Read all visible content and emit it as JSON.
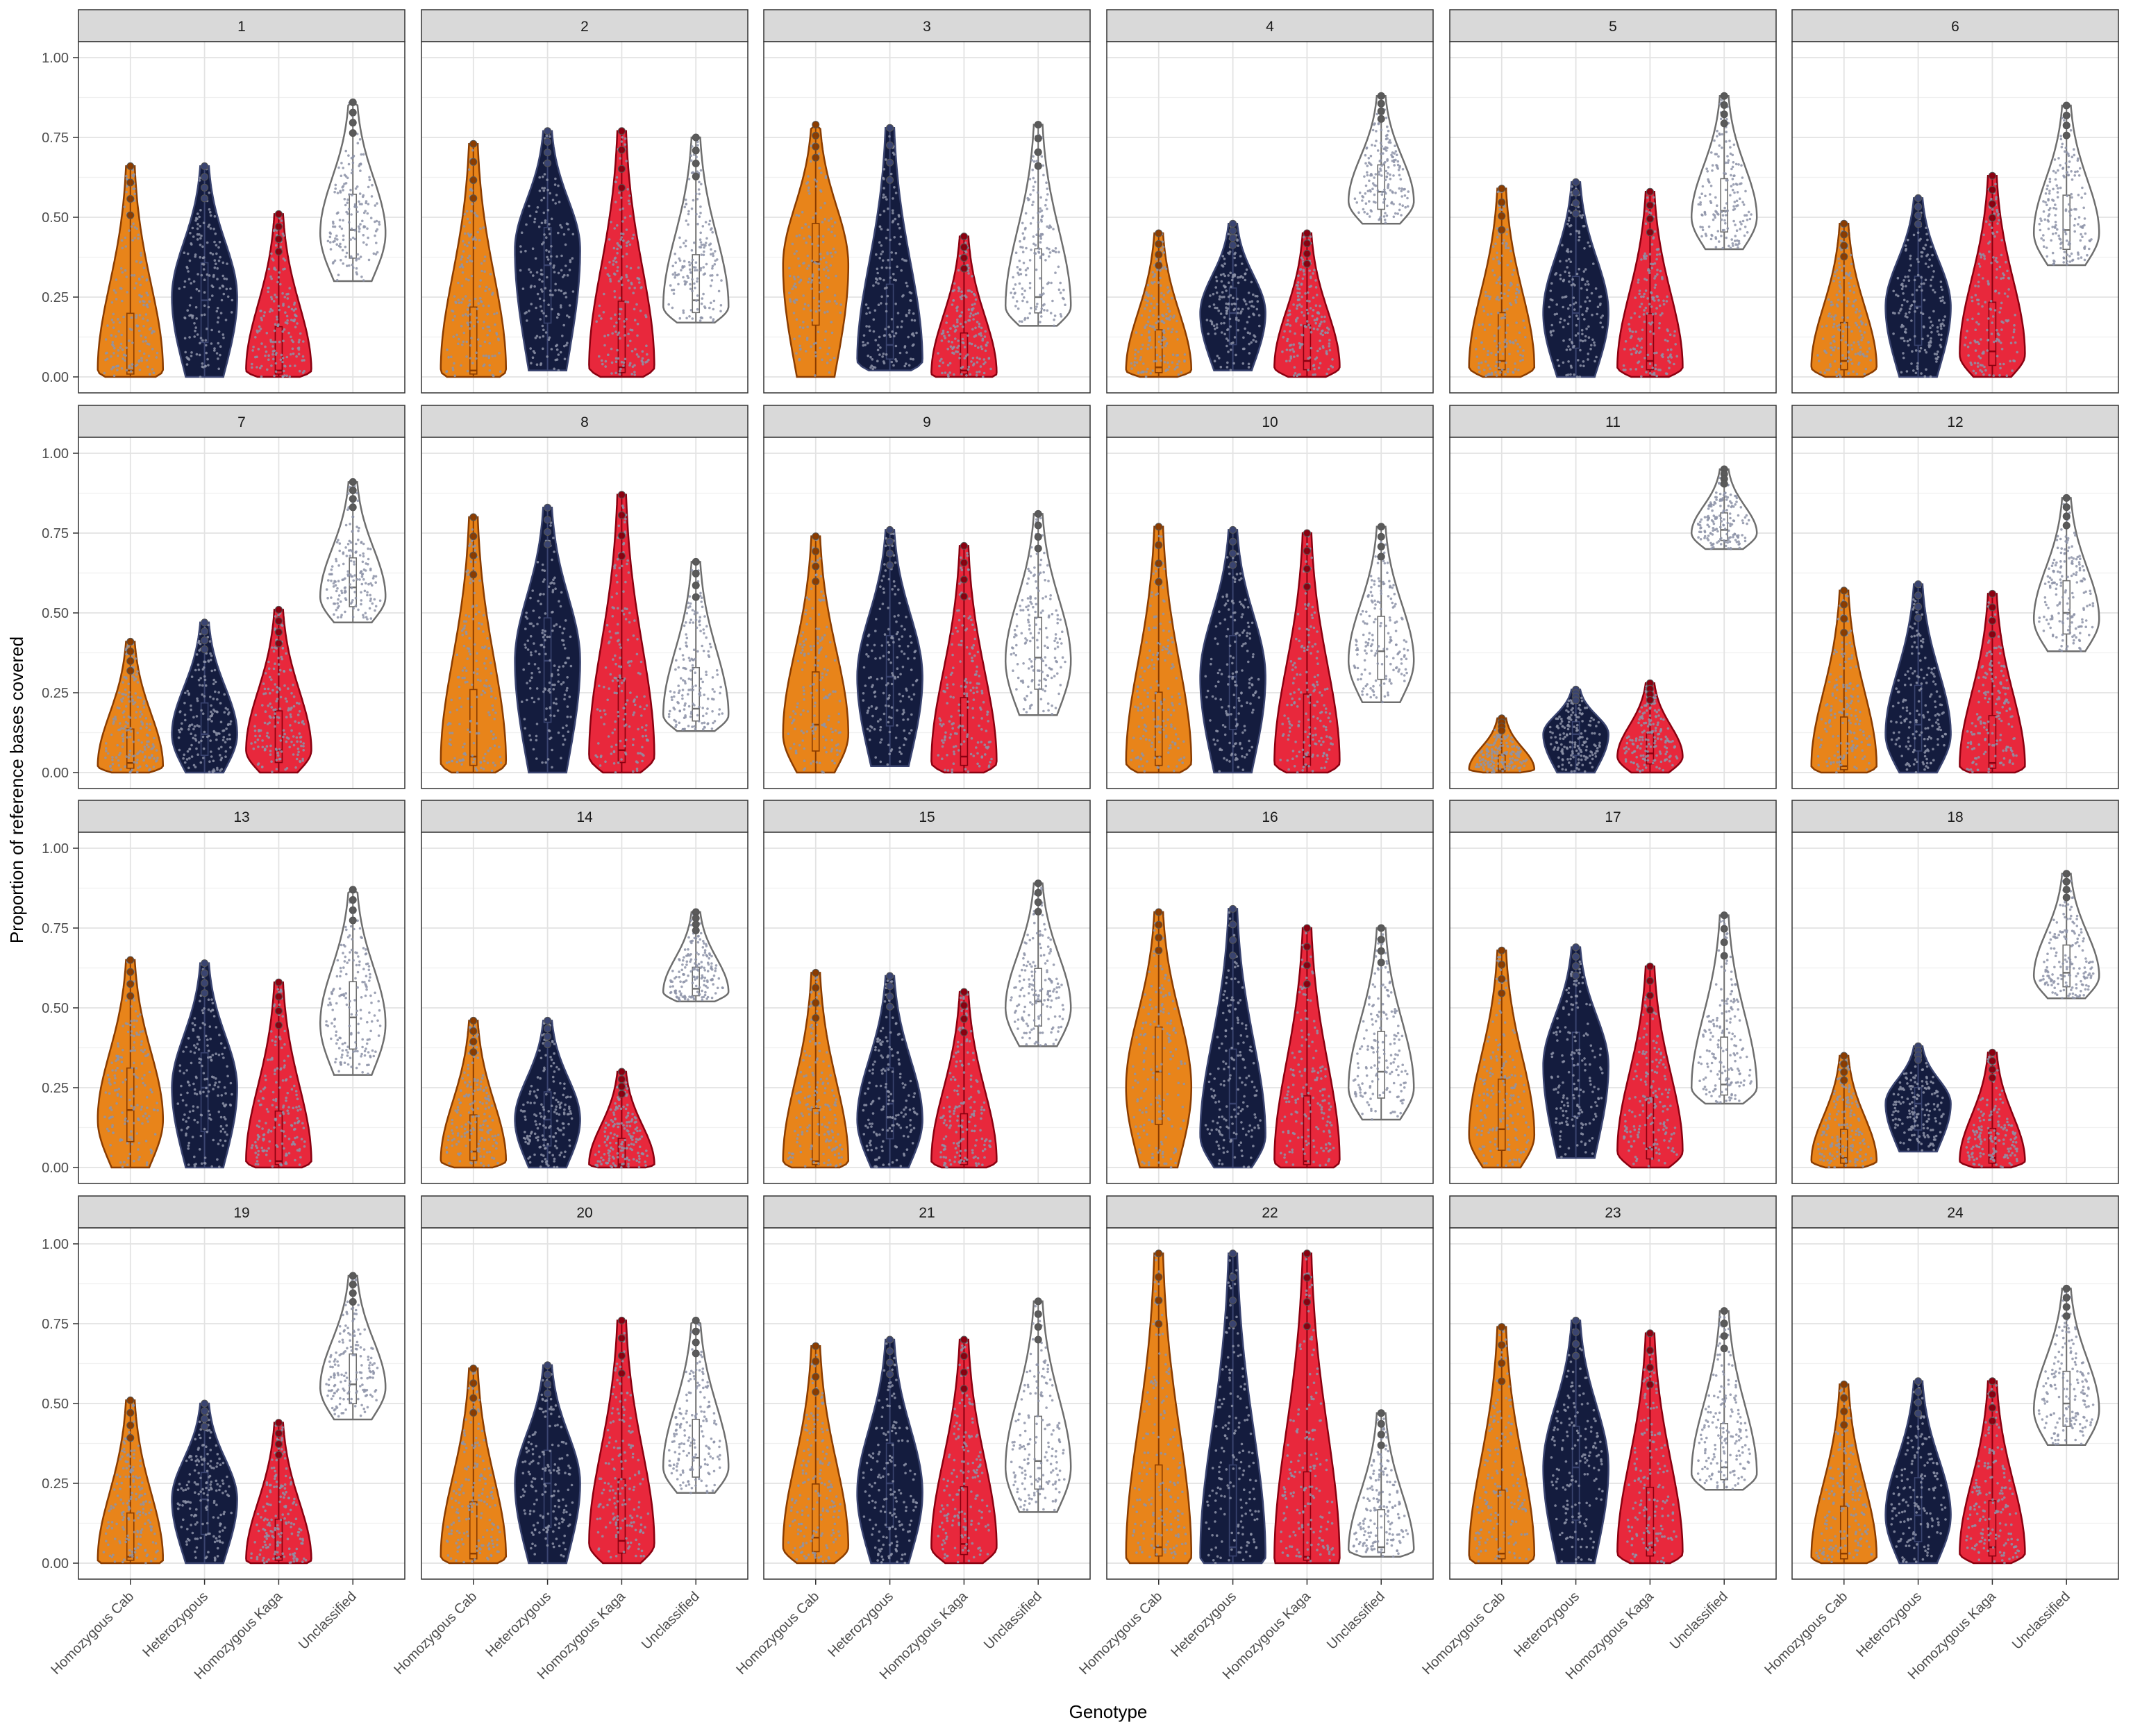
{
  "chart_data": {
    "type": "violin",
    "xlabel": "Genotype",
    "ylabel": "Proportion of reference bases covered",
    "ylim": [
      0,
      1
    ],
    "y_ticks": [
      0.0,
      0.25,
      0.5,
      0.75,
      1.0
    ],
    "y_tick_labels": [
      "0.00",
      "0.25",
      "0.50",
      "0.75",
      "1.00"
    ],
    "categories": [
      "Homozygous Cab",
      "Heterozygous",
      "Homozygous Kaga",
      "Unclassified"
    ],
    "series_colors": {
      "Homozygous Cab": "#e8841a",
      "Heterozygous": "#141c3e",
      "Homozygous Kaga": "#e8283c",
      "Unclassified": "#ffffff"
    },
    "outline_colors": {
      "Homozygous Cab": "#8a3c00",
      "Heterozygous": "#3a4470",
      "Homozygous Kaga": "#8a0010",
      "Unclassified": "#6e6e6e"
    },
    "point_color": "#8d93a8",
    "grid": true,
    "legend": "none",
    "facet_layout": {
      "rows": 4,
      "cols": 6
    },
    "panels": [
      {
        "label": "1",
        "stats": [
          {
            "min": 0.0,
            "max": 0.66,
            "median": 0.02,
            "peak": 0.02
          },
          {
            "min": 0.0,
            "max": 0.66,
            "median": 0.24,
            "peak": 0.25
          },
          {
            "min": 0.0,
            "max": 0.51,
            "median": 0.02,
            "peak": 0.02
          },
          {
            "min": 0.3,
            "max": 0.86,
            "median": 0.46,
            "peak": 0.45
          }
        ]
      },
      {
        "label": "2",
        "stats": [
          {
            "min": 0.0,
            "max": 0.73,
            "median": 0.02,
            "peak": 0.02
          },
          {
            "min": 0.02,
            "max": 0.77,
            "median": 0.35,
            "peak": 0.4
          },
          {
            "min": 0.0,
            "max": 0.77,
            "median": 0.03,
            "peak": 0.03
          },
          {
            "min": 0.17,
            "max": 0.75,
            "median": 0.24,
            "peak": 0.22
          }
        ]
      },
      {
        "label": "3",
        "stats": [
          {
            "min": 0.0,
            "max": 0.79,
            "median": 0.36,
            "peak": 0.35
          },
          {
            "min": 0.02,
            "max": 0.78,
            "median": 0.1,
            "peak": 0.05
          },
          {
            "min": 0.0,
            "max": 0.44,
            "median": 0.02,
            "peak": 0.01
          },
          {
            "min": 0.16,
            "max": 0.79,
            "median": 0.25,
            "peak": 0.22
          }
        ]
      },
      {
        "label": "4",
        "stats": [
          {
            "min": 0.0,
            "max": 0.45,
            "median": 0.03,
            "peak": 0.02
          },
          {
            "min": 0.02,
            "max": 0.48,
            "median": 0.2,
            "peak": 0.2
          },
          {
            "min": 0.0,
            "max": 0.45,
            "median": 0.05,
            "peak": 0.03
          },
          {
            "min": 0.48,
            "max": 0.88,
            "median": 0.58,
            "peak": 0.55
          }
        ]
      },
      {
        "label": "5",
        "stats": [
          {
            "min": 0.0,
            "max": 0.59,
            "median": 0.05,
            "peak": 0.03
          },
          {
            "min": 0.0,
            "max": 0.61,
            "median": 0.2,
            "peak": 0.2
          },
          {
            "min": 0.0,
            "max": 0.58,
            "median": 0.05,
            "peak": 0.03
          },
          {
            "min": 0.4,
            "max": 0.88,
            "median": 0.52,
            "peak": 0.5
          }
        ]
      },
      {
        "label": "6",
        "stats": [
          {
            "min": 0.0,
            "max": 0.48,
            "median": 0.05,
            "peak": 0.03
          },
          {
            "min": 0.0,
            "max": 0.56,
            "median": 0.22,
            "peak": 0.22
          },
          {
            "min": 0.0,
            "max": 0.63,
            "median": 0.08,
            "peak": 0.07
          },
          {
            "min": 0.35,
            "max": 0.85,
            "median": 0.46,
            "peak": 0.45
          }
        ]
      },
      {
        "label": "7",
        "stats": [
          {
            "min": 0.0,
            "max": 0.41,
            "median": 0.03,
            "peak": 0.02
          },
          {
            "min": 0.0,
            "max": 0.47,
            "median": 0.12,
            "peak": 0.12
          },
          {
            "min": 0.0,
            "max": 0.51,
            "median": 0.07,
            "peak": 0.07
          },
          {
            "min": 0.47,
            "max": 0.91,
            "median": 0.58,
            "peak": 0.55
          }
        ]
      },
      {
        "label": "8",
        "stats": [
          {
            "min": 0.0,
            "max": 0.8,
            "median": 0.05,
            "peak": 0.03
          },
          {
            "min": 0.0,
            "max": 0.83,
            "median": 0.35,
            "peak": 0.35
          },
          {
            "min": 0.0,
            "max": 0.87,
            "median": 0.07,
            "peak": 0.05
          },
          {
            "min": 0.13,
            "max": 0.66,
            "median": 0.2,
            "peak": 0.18
          }
        ]
      },
      {
        "label": "9",
        "stats": [
          {
            "min": 0.0,
            "max": 0.74,
            "median": 0.15,
            "peak": 0.12
          },
          {
            "min": 0.02,
            "max": 0.76,
            "median": 0.3,
            "peak": 0.3
          },
          {
            "min": 0.0,
            "max": 0.71,
            "median": 0.05,
            "peak": 0.03
          },
          {
            "min": 0.18,
            "max": 0.81,
            "median": 0.36,
            "peak": 0.35
          }
        ]
      },
      {
        "label": "10",
        "stats": [
          {
            "min": 0.0,
            "max": 0.77,
            "median": 0.05,
            "peak": 0.03
          },
          {
            "min": 0.0,
            "max": 0.76,
            "median": 0.3,
            "peak": 0.3
          },
          {
            "min": 0.0,
            "max": 0.75,
            "median": 0.05,
            "peak": 0.03
          },
          {
            "min": 0.22,
            "max": 0.77,
            "median": 0.38,
            "peak": 0.35
          }
        ]
      },
      {
        "label": "11",
        "stats": [
          {
            "min": 0.0,
            "max": 0.17,
            "median": 0.01,
            "peak": 0.01
          },
          {
            "min": 0.0,
            "max": 0.26,
            "median": 0.12,
            "peak": 0.12
          },
          {
            "min": 0.0,
            "max": 0.28,
            "median": 0.06,
            "peak": 0.05
          },
          {
            "min": 0.7,
            "max": 0.95,
            "median": 0.76,
            "peak": 0.75
          }
        ]
      },
      {
        "label": "12",
        "stats": [
          {
            "min": 0.0,
            "max": 0.57,
            "median": 0.02,
            "peak": 0.02
          },
          {
            "min": 0.0,
            "max": 0.59,
            "median": 0.15,
            "peak": 0.12
          },
          {
            "min": 0.0,
            "max": 0.56,
            "median": 0.03,
            "peak": 0.02
          },
          {
            "min": 0.38,
            "max": 0.86,
            "median": 0.5,
            "peak": 0.48
          }
        ]
      },
      {
        "label": "13",
        "stats": [
          {
            "min": 0.0,
            "max": 0.65,
            "median": 0.18,
            "peak": 0.15
          },
          {
            "min": 0.0,
            "max": 0.64,
            "median": 0.25,
            "peak": 0.25
          },
          {
            "min": 0.0,
            "max": 0.58,
            "median": 0.02,
            "peak": 0.02
          },
          {
            "min": 0.29,
            "max": 0.87,
            "median": 0.47,
            "peak": 0.45
          }
        ]
      },
      {
        "label": "14",
        "stats": [
          {
            "min": 0.0,
            "max": 0.46,
            "median": 0.05,
            "peak": 0.02
          },
          {
            "min": 0.0,
            "max": 0.46,
            "median": 0.15,
            "peak": 0.15
          },
          {
            "min": 0.0,
            "max": 0.3,
            "median": 0.01,
            "peak": 0.01
          },
          {
            "min": 0.52,
            "max": 0.8,
            "median": 0.56,
            "peak": 0.55
          }
        ]
      },
      {
        "label": "15",
        "stats": [
          {
            "min": 0.0,
            "max": 0.61,
            "median": 0.02,
            "peak": 0.02
          },
          {
            "min": 0.0,
            "max": 0.6,
            "median": 0.2,
            "peak": 0.15
          },
          {
            "min": 0.0,
            "max": 0.55,
            "median": 0.02,
            "peak": 0.02
          },
          {
            "min": 0.38,
            "max": 0.89,
            "median": 0.52,
            "peak": 0.5
          }
        ]
      },
      {
        "label": "16",
        "stats": [
          {
            "min": 0.0,
            "max": 0.8,
            "median": 0.3,
            "peak": 0.25
          },
          {
            "min": 0.0,
            "max": 0.81,
            "median": 0.2,
            "peak": 0.1
          },
          {
            "min": 0.0,
            "max": 0.75,
            "median": 0.02,
            "peak": 0.02
          },
          {
            "min": 0.15,
            "max": 0.75,
            "median": 0.3,
            "peak": 0.25
          }
        ]
      },
      {
        "label": "17",
        "stats": [
          {
            "min": 0.0,
            "max": 0.68,
            "median": 0.12,
            "peak": 0.1
          },
          {
            "min": 0.03,
            "max": 0.69,
            "median": 0.32,
            "peak": 0.32
          },
          {
            "min": 0.0,
            "max": 0.63,
            "median": 0.06,
            "peak": 0.05
          },
          {
            "min": 0.2,
            "max": 0.79,
            "median": 0.26,
            "peak": 0.25
          }
        ]
      },
      {
        "label": "18",
        "stats": [
          {
            "min": 0.0,
            "max": 0.35,
            "median": 0.03,
            "peak": 0.02
          },
          {
            "min": 0.05,
            "max": 0.38,
            "median": 0.2,
            "peak": 0.2
          },
          {
            "min": 0.0,
            "max": 0.36,
            "median": 0.03,
            "peak": 0.02
          },
          {
            "min": 0.53,
            "max": 0.92,
            "median": 0.61,
            "peak": 0.6
          }
        ]
      },
      {
        "label": "19",
        "stats": [
          {
            "min": 0.0,
            "max": 0.51,
            "median": 0.02,
            "peak": 0.01
          },
          {
            "min": 0.0,
            "max": 0.5,
            "median": 0.2,
            "peak": 0.2
          },
          {
            "min": 0.0,
            "max": 0.44,
            "median": 0.02,
            "peak": 0.01
          },
          {
            "min": 0.45,
            "max": 0.9,
            "median": 0.56,
            "peak": 0.55
          }
        ]
      },
      {
        "label": "20",
        "stats": [
          {
            "min": 0.0,
            "max": 0.61,
            "median": 0.03,
            "peak": 0.02
          },
          {
            "min": 0.0,
            "max": 0.62,
            "median": 0.25,
            "peak": 0.25
          },
          {
            "min": 0.0,
            "max": 0.76,
            "median": 0.07,
            "peak": 0.06
          },
          {
            "min": 0.22,
            "max": 0.76,
            "median": 0.33,
            "peak": 0.3
          }
        ]
      },
      {
        "label": "21",
        "stats": [
          {
            "min": 0.0,
            "max": 0.68,
            "median": 0.08,
            "peak": 0.05
          },
          {
            "min": 0.0,
            "max": 0.7,
            "median": 0.25,
            "peak": 0.22
          },
          {
            "min": 0.0,
            "max": 0.7,
            "median": 0.06,
            "peak": 0.05
          },
          {
            "min": 0.16,
            "max": 0.82,
            "median": 0.32,
            "peak": 0.3
          }
        ]
      },
      {
        "label": "22",
        "stats": [
          {
            "min": 0.0,
            "max": 0.97,
            "median": 0.05,
            "peak": 0.02
          },
          {
            "min": 0.0,
            "max": 0.97,
            "median": 0.05,
            "peak": 0.02
          },
          {
            "min": 0.0,
            "max": 0.97,
            "median": 0.02,
            "peak": 0.01
          },
          {
            "min": 0.02,
            "max": 0.47,
            "median": 0.05,
            "peak": 0.04
          }
        ]
      },
      {
        "label": "23",
        "stats": [
          {
            "min": 0.0,
            "max": 0.74,
            "median": 0.03,
            "peak": 0.02
          },
          {
            "min": 0.0,
            "max": 0.76,
            "median": 0.3,
            "peak": 0.3
          },
          {
            "min": 0.0,
            "max": 0.72,
            "median": 0.05,
            "peak": 0.03
          },
          {
            "min": 0.23,
            "max": 0.79,
            "median": 0.3,
            "peak": 0.28
          }
        ]
      },
      {
        "label": "24",
        "stats": [
          {
            "min": 0.0,
            "max": 0.56,
            "median": 0.03,
            "peak": 0.02
          },
          {
            "min": 0.0,
            "max": 0.57,
            "median": 0.15,
            "peak": 0.15
          },
          {
            "min": 0.0,
            "max": 0.57,
            "median": 0.05,
            "peak": 0.03
          },
          {
            "min": 0.37,
            "max": 0.86,
            "median": 0.5,
            "peak": 0.48
          }
        ]
      }
    ]
  }
}
